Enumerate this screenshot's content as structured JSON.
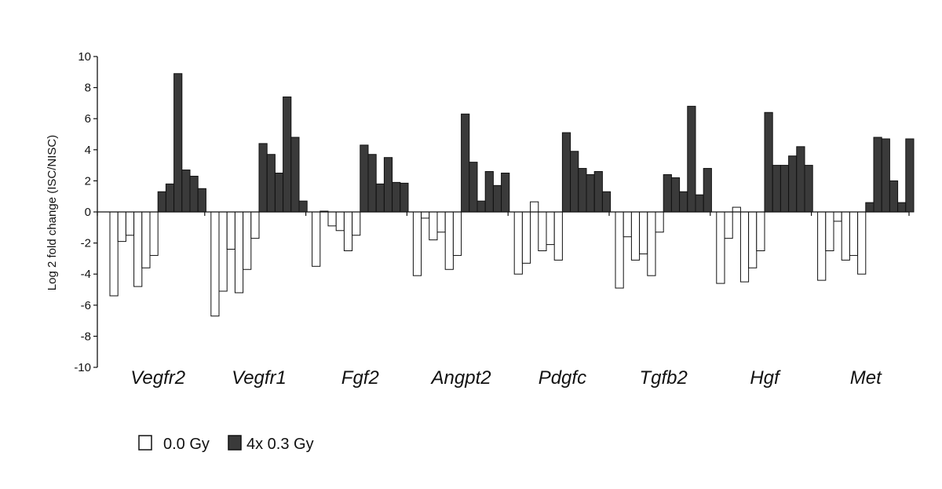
{
  "chart_data": {
    "type": "bar",
    "title": "",
    "xlabel": "",
    "ylabel": "Log 2 fold change (ISC/NISC)",
    "ylim": [
      -10,
      10
    ],
    "yticks": [
      10,
      8,
      6,
      4,
      2,
      0,
      -2,
      -4,
      -6,
      -8,
      -10
    ],
    "categories": [
      "Vegfr2",
      "Vegfr1",
      "Fgf2",
      "Angpt2",
      "Pdgfc",
      "Tgfb2",
      "Hgf",
      "Met"
    ],
    "legend_position": "bottom-left",
    "colors": {
      "sham": "#ffffff",
      "irradiated": "#3a3a3a"
    },
    "series": [
      {
        "name": "0.0 Gy",
        "values": [
          [
            -5.4,
            -1.9,
            -1.5,
            -4.8,
            -3.6,
            -2.8
          ],
          [
            -6.7,
            -5.1,
            -2.4,
            -5.2,
            -3.7,
            -1.7
          ],
          [
            -3.5,
            0.05,
            -0.9,
            -1.2,
            -2.5,
            -1.5
          ],
          [
            -4.1,
            -0.4,
            -1.8,
            -1.3,
            -3.7,
            -2.8
          ],
          [
            -4.0,
            -3.3,
            0.65,
            -2.5,
            -2.1,
            -3.1
          ],
          [
            -4.9,
            -1.6,
            -3.1,
            -2.7,
            -4.1,
            -1.3
          ],
          [
            -4.6,
            -1.7,
            0.3,
            -4.5,
            -3.6,
            -2.5
          ],
          [
            -4.4,
            -2.5,
            -0.6,
            -3.1,
            -2.8,
            -4.0
          ]
        ]
      },
      {
        "name": "4x 0.3 Gy",
        "values": [
          [
            1.3,
            1.8,
            8.9,
            2.7,
            2.3,
            1.5
          ],
          [
            4.4,
            3.7,
            2.5,
            7.4,
            4.8,
            0.7
          ],
          [
            4.3,
            3.7,
            1.8,
            3.5,
            1.9,
            1.85
          ],
          [
            6.3,
            3.2,
            0.7,
            2.6,
            1.7,
            2.5
          ],
          [
            5.1,
            3.9,
            2.8,
            2.4,
            2.6,
            1.3
          ],
          [
            2.4,
            2.2,
            1.3,
            6.8,
            1.1,
            2.8
          ],
          [
            6.4,
            3.0,
            3.0,
            3.6,
            4.2,
            3.0
          ],
          [
            0.6,
            4.8,
            4.7,
            2.0,
            0.6,
            4.7
          ]
        ]
      }
    ]
  }
}
